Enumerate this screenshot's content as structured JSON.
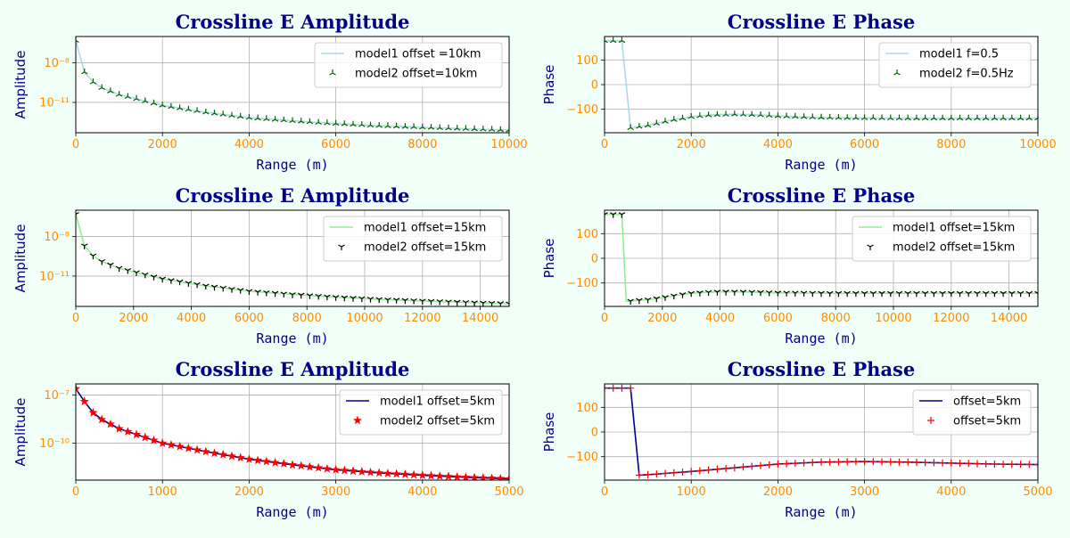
{
  "chart_data": [
    {
      "type": "line",
      "title": "Crossline E Amplitude",
      "xlabel": "Range (m)",
      "ylabel": "Amplitude",
      "yscale": "log",
      "xlim": [
        0,
        10000
      ],
      "ylim": [
        5e-14,
        1e-06
      ],
      "xticks": [
        0,
        2000,
        4000,
        6000,
        8000,
        10000
      ],
      "xtick_labels": [
        "0",
        "2000",
        "4000",
        "6000",
        "8000",
        "10000"
      ],
      "yticks": [
        1e-08,
        1e-11
      ],
      "ytick_labels": [
        "10⁻⁸",
        "10⁻¹¹"
      ],
      "grid": true,
      "legend": "top-right",
      "series": [
        {
          "name": "model1 offset =10km",
          "style": "line",
          "color": "#add8e6",
          "x": [
            0,
            200,
            400,
            600,
            1000,
            2000,
            3000,
            4000,
            5000,
            6000,
            7000,
            8000,
            9000,
            10000
          ],
          "y": [
            5e-07,
            2e-09,
            3.5e-10,
            1.3e-10,
            4e-11,
            6e-12,
            1.8e-12,
            7e-13,
            4e-13,
            2.5e-13,
            1.7e-13,
            1.3e-13,
            1e-13,
            8e-14
          ]
        },
        {
          "name": "model2 offset=10km",
          "style": "marker",
          "marker": "tri_up",
          "color": "#006400",
          "x_start": 0,
          "x_step": 200,
          "count": 51,
          "x": [
            0,
            200,
            400,
            600,
            1000,
            2000,
            3000,
            4000,
            5000,
            6000,
            7000,
            8000,
            9000,
            10000
          ],
          "y": [
            5e-07,
            2e-09,
            3.5e-10,
            1.3e-10,
            4e-11,
            6e-12,
            1.8e-12,
            7e-13,
            4e-13,
            2.5e-13,
            1.7e-13,
            1.3e-13,
            1e-13,
            8e-14
          ]
        }
      ]
    },
    {
      "type": "line",
      "title": "Crossline E Phase",
      "xlabel": "Range (m)",
      "ylabel": "Phase",
      "xlim": [
        0,
        10000
      ],
      "ylim": [
        -195,
        195
      ],
      "xticks": [
        0,
        2000,
        4000,
        6000,
        8000,
        10000
      ],
      "xtick_labels": [
        "0",
        "2000",
        "4000",
        "6000",
        "8000",
        "10000"
      ],
      "yticks": [
        100,
        0,
        -100
      ],
      "ytick_labels": [
        "100",
        "0",
        "−100"
      ],
      "grid": true,
      "legend": "top-right",
      "series": [
        {
          "name": "model1 f=0.5",
          "style": "line",
          "color": "#add8e6",
          "x": [
            0,
            200,
            400,
            600,
            1000,
            1500,
            2000,
            2500,
            3000,
            3500,
            4000,
            5000,
            6000,
            7000,
            8000,
            9000,
            10000
          ],
          "y": [
            178,
            178,
            178,
            -175,
            -165,
            -145,
            -130,
            -122,
            -120,
            -122,
            -127,
            -133,
            -135,
            -136,
            -136,
            -136,
            -136
          ]
        },
        {
          "name": "model2 f=0.5Hz",
          "style": "marker",
          "marker": "tri_up",
          "color": "#006400",
          "x_start": 0,
          "x_step": 200,
          "count": 51,
          "x": [
            0,
            200,
            400,
            600,
            1000,
            1500,
            2000,
            2500,
            3000,
            3500,
            4000,
            5000,
            6000,
            7000,
            8000,
            9000,
            10000
          ],
          "y": [
            178,
            178,
            178,
            -175,
            -165,
            -145,
            -130,
            -122,
            -120,
            -122,
            -127,
            -133,
            -135,
            -136,
            -136,
            -136,
            -136
          ]
        }
      ]
    },
    {
      "type": "line",
      "title": "Crossline E Amplitude",
      "xlabel": "Range (m)",
      "ylabel": "Amplitude",
      "yscale": "log",
      "xlim": [
        0,
        15000
      ],
      "ylim": [
        5e-14,
        1e-06
      ],
      "xticks": [
        0,
        2000,
        4000,
        6000,
        8000,
        10000,
        12000,
        14000
      ],
      "xtick_labels": [
        "0",
        "2000",
        "4000",
        "6000",
        "8000",
        "10000",
        "12000",
        "14000"
      ],
      "yticks": [
        1e-08,
        1e-11
      ],
      "ytick_labels": [
        "10⁻⁸",
        "10⁻¹¹"
      ],
      "grid": true,
      "legend": "top-right",
      "series": [
        {
          "name": "model1 offset=15km",
          "style": "line",
          "color": "#90ee90",
          "x": [
            0,
            300,
            600,
            900,
            1500,
            3000,
            4500,
            6000,
            7500,
            9000,
            10500,
            12000,
            13500,
            15000
          ],
          "y": [
            5e-07,
            2e-09,
            3.5e-10,
            1.3e-10,
            4e-11,
            6e-12,
            1.8e-12,
            7e-13,
            4e-13,
            2.5e-13,
            1.7e-13,
            1.3e-13,
            1e-13,
            8e-14
          ]
        },
        {
          "name": "model2 offset=15km",
          "style": "marker",
          "marker": "tri_down",
          "color": "#000000",
          "x_start": 0,
          "x_step": 300,
          "count": 51,
          "x": [
            0,
            300,
            600,
            900,
            1500,
            3000,
            4500,
            6000,
            7500,
            9000,
            10500,
            12000,
            13500,
            15000
          ],
          "y": [
            5e-07,
            2e-09,
            3.5e-10,
            1.3e-10,
            4e-11,
            6e-12,
            1.8e-12,
            7e-13,
            4e-13,
            2.5e-13,
            1.7e-13,
            1.3e-13,
            1e-13,
            8e-14
          ]
        }
      ]
    },
    {
      "type": "line",
      "title": "Crossline E Phase",
      "xlabel": "Range (m)",
      "ylabel": "Phase",
      "xlim": [
        0,
        15000
      ],
      "ylim": [
        -195,
        195
      ],
      "xticks": [
        0,
        2000,
        4000,
        6000,
        8000,
        10000,
        12000,
        14000
      ],
      "xtick_labels": [
        "0",
        "2000",
        "4000",
        "6000",
        "8000",
        "10000",
        "12000",
        "14000"
      ],
      "yticks": [
        100,
        0,
        -100
      ],
      "ytick_labels": [
        "100",
        "0",
        "−100"
      ],
      "grid": true,
      "legend": "top-right",
      "series": [
        {
          "name": "model1 offset=15km",
          "style": "line",
          "color": "#90ee90",
          "x": [
            0,
            300,
            600,
            750,
            1000,
            1500,
            2000,
            2500,
            3000,
            3500,
            4000,
            4500,
            5000,
            6000,
            8000,
            10000,
            12000,
            14000,
            15000
          ],
          "y": [
            178,
            178,
            178,
            -175,
            -172,
            -168,
            -160,
            -150,
            -142,
            -138,
            -136,
            -136,
            -137,
            -140,
            -142,
            -142,
            -142,
            -142,
            -142
          ]
        },
        {
          "name": "model2 offset=15km",
          "style": "marker",
          "marker": "tri_down",
          "color": "#000000",
          "x_start": 0,
          "x_step": 300,
          "count": 51,
          "x": [
            0,
            300,
            600,
            750,
            1000,
            1500,
            2000,
            2500,
            3000,
            3500,
            4000,
            4500,
            5000,
            6000,
            8000,
            10000,
            12000,
            14000,
            15000
          ],
          "y": [
            178,
            178,
            178,
            -175,
            -172,
            -168,
            -160,
            -150,
            -142,
            -138,
            -136,
            -136,
            -137,
            -140,
            -142,
            -142,
            -142,
            -142,
            -142
          ]
        }
      ]
    },
    {
      "type": "line",
      "title": "Crossline E Amplitude",
      "xlabel": "Range (m)",
      "ylabel": "Amplitude",
      "yscale": "log",
      "xlim": [
        0,
        5000
      ],
      "ylim": [
        5e-13,
        5e-07
      ],
      "xticks": [
        0,
        1000,
        2000,
        3000,
        4000,
        5000
      ],
      "xtick_labels": [
        "0",
        "1000",
        "2000",
        "3000",
        "4000",
        "5000"
      ],
      "yticks": [
        1e-07,
        1e-10
      ],
      "ytick_labels": [
        "10⁻⁷",
        "10⁻¹⁰"
      ],
      "grid": true,
      "legend": "top-right",
      "series": [
        {
          "name": "model1 offset=5km",
          "style": "line",
          "color": "#00008b",
          "x": [
            0,
            100,
            200,
            300,
            500,
            1000,
            1500,
            2000,
            2500,
            3000,
            3500,
            4000,
            4500,
            5000
          ],
          "y": [
            2.5e-07,
            4e-08,
            8e-09,
            3e-09,
            8e-10,
            1e-10,
            3e-11,
            1e-11,
            4.5e-12,
            2.2e-12,
            1.4e-12,
            1e-12,
            7.5e-13,
            6e-13
          ]
        },
        {
          "name": "model2 offset=5km",
          "style": "marker",
          "marker": "star",
          "color": "#ff0000",
          "x_start": 0,
          "x_step": 100,
          "count": 51,
          "x": [
            0,
            100,
            200,
            300,
            500,
            1000,
            1500,
            2000,
            2500,
            3000,
            3500,
            4000,
            4500,
            5000
          ],
          "y": [
            2.5e-07,
            4e-08,
            8e-09,
            3e-09,
            8e-10,
            1e-10,
            3e-11,
            1e-11,
            4.5e-12,
            2.2e-12,
            1.4e-12,
            1e-12,
            7.5e-13,
            6e-13
          ]
        }
      ]
    },
    {
      "type": "line",
      "title": "Crossline E Phase",
      "xlabel": "Range (m)",
      "ylabel": "Phase",
      "xlim": [
        0,
        5000
      ],
      "ylim": [
        -195,
        195
      ],
      "xticks": [
        0,
        1000,
        2000,
        3000,
        4000,
        5000
      ],
      "xtick_labels": [
        "0",
        "1000",
        "2000",
        "3000",
        "4000",
        "5000"
      ],
      "yticks": [
        100,
        0,
        -100
      ],
      "ytick_labels": [
        "100",
        "0",
        "−100"
      ],
      "grid": true,
      "legend": "top-right",
      "series": [
        {
          "name": "offset=5km",
          "style": "line",
          "color": "#00008b",
          "x": [
            0,
            100,
            200,
            300,
            400,
            500,
            700,
            1000,
            1500,
            2000,
            2500,
            3000,
            3500,
            4000,
            4500,
            5000
          ],
          "y": [
            178,
            178,
            178,
            178,
            -175,
            -173,
            -168,
            -160,
            -145,
            -130,
            -122,
            -120,
            -122,
            -126,
            -130,
            -132
          ]
        },
        {
          "name": "offset=5km",
          "style": "marker",
          "marker": "plus",
          "color": "#ff0000",
          "x_start": 0,
          "x_step": 100,
          "count": 51,
          "x": [
            0,
            100,
            200,
            300,
            400,
            500,
            700,
            1000,
            1500,
            2000,
            2500,
            3000,
            3500,
            4000,
            4500,
            5000
          ],
          "y": [
            178,
            178,
            178,
            178,
            -175,
            -173,
            -168,
            -160,
            -145,
            -130,
            -122,
            -120,
            -122,
            -126,
            -130,
            -132
          ]
        }
      ]
    }
  ]
}
